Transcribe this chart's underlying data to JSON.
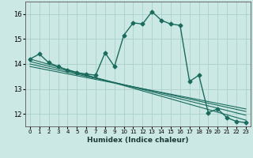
{
  "xlabel": "Humidex (Indice chaleur)",
  "bg_color": "#cce8e4",
  "grid_color": "#aacfca",
  "line_color": "#1a6b5e",
  "xlim": [
    -0.5,
    23.5
  ],
  "ylim": [
    11.5,
    16.5
  ],
  "yticks": [
    12,
    13,
    14,
    15,
    16
  ],
  "xticks": [
    0,
    1,
    2,
    3,
    4,
    5,
    6,
    7,
    8,
    9,
    10,
    11,
    12,
    13,
    14,
    15,
    16,
    17,
    18,
    19,
    20,
    21,
    22,
    23
  ],
  "main_x": [
    0,
    1,
    2,
    3,
    4,
    5,
    6,
    7,
    8,
    9,
    10,
    11,
    12,
    13,
    14,
    15,
    16,
    17,
    18,
    19,
    20,
    21,
    22,
    23
  ],
  "main_y": [
    14.2,
    14.4,
    14.05,
    13.9,
    13.75,
    13.65,
    13.6,
    13.55,
    14.45,
    13.9,
    15.15,
    15.65,
    15.6,
    16.1,
    15.75,
    15.6,
    15.55,
    13.3,
    13.55,
    12.05,
    12.2,
    11.85,
    11.7,
    11.65
  ],
  "trend_lines": [
    {
      "x0": 0,
      "y0": 14.2,
      "x1": 23,
      "y1": 11.75
    },
    {
      "x0": 0,
      "y0": 14.1,
      "x1": 23,
      "y1": 11.95
    },
    {
      "x0": 0,
      "y0": 14.0,
      "x1": 23,
      "y1": 12.1
    },
    {
      "x0": 0,
      "y0": 13.9,
      "x1": 23,
      "y1": 12.2
    }
  ]
}
